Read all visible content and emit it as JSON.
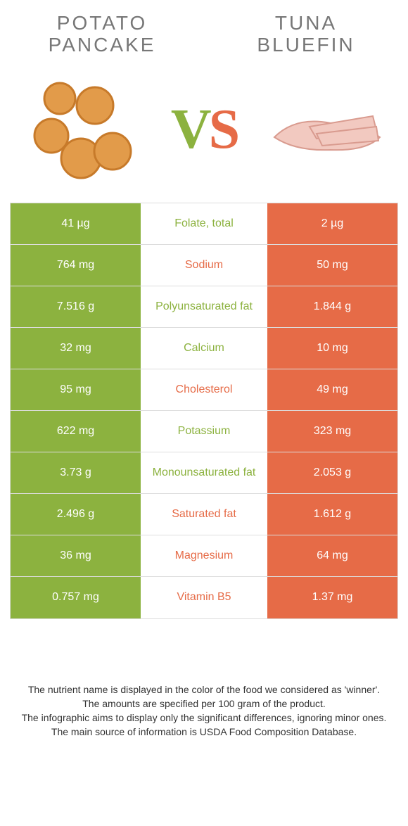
{
  "titles": {
    "left": "POTATO\nPANCAKE",
    "right": "TUNA\nBLUEFIN"
  },
  "vs": {
    "v": "V",
    "s": "S"
  },
  "colors": {
    "green": "#8cb23f",
    "orange": "#e66b47",
    "vs_v": "#8cb23f",
    "vs_s": "#e66b47",
    "row_border": "#dddddd",
    "bg": "#ffffff",
    "title_color": "#777777",
    "footer_color": "#333333"
  },
  "rows": [
    {
      "left": "41 µg",
      "mid": "Folate, total",
      "right": "2 µg",
      "mid_color": "green"
    },
    {
      "left": "764 mg",
      "mid": "Sodium",
      "right": "50 mg",
      "mid_color": "orange"
    },
    {
      "left": "7.516 g",
      "mid": "Polyunsaturated fat",
      "right": "1.844 g",
      "mid_color": "green"
    },
    {
      "left": "32 mg",
      "mid": "Calcium",
      "right": "10 mg",
      "mid_color": "green"
    },
    {
      "left": "95 mg",
      "mid": "Cholesterol",
      "right": "49 mg",
      "mid_color": "orange"
    },
    {
      "left": "622 mg",
      "mid": "Potassium",
      "right": "323 mg",
      "mid_color": "green"
    },
    {
      "left": "3.73 g",
      "mid": "Monounsaturated fat",
      "right": "2.053 g",
      "mid_color": "green"
    },
    {
      "left": "2.496 g",
      "mid": "Saturated fat",
      "right": "1.612 g",
      "mid_color": "orange"
    },
    {
      "left": "36 mg",
      "mid": "Magnesium",
      "right": "64 mg",
      "mid_color": "orange"
    },
    {
      "left": "0.757 mg",
      "mid": "Vitamin B5",
      "right": "1.37 mg",
      "mid_color": "orange"
    }
  ],
  "footer": [
    "The nutrient name is displayed in the color of the food we considered as 'winner'.",
    "The amounts are specified per 100 gram of the product.",
    "The infographic aims to display only the significant differences, ignoring minor ones.",
    "The main source of information is USDA Food Composition Database."
  ]
}
